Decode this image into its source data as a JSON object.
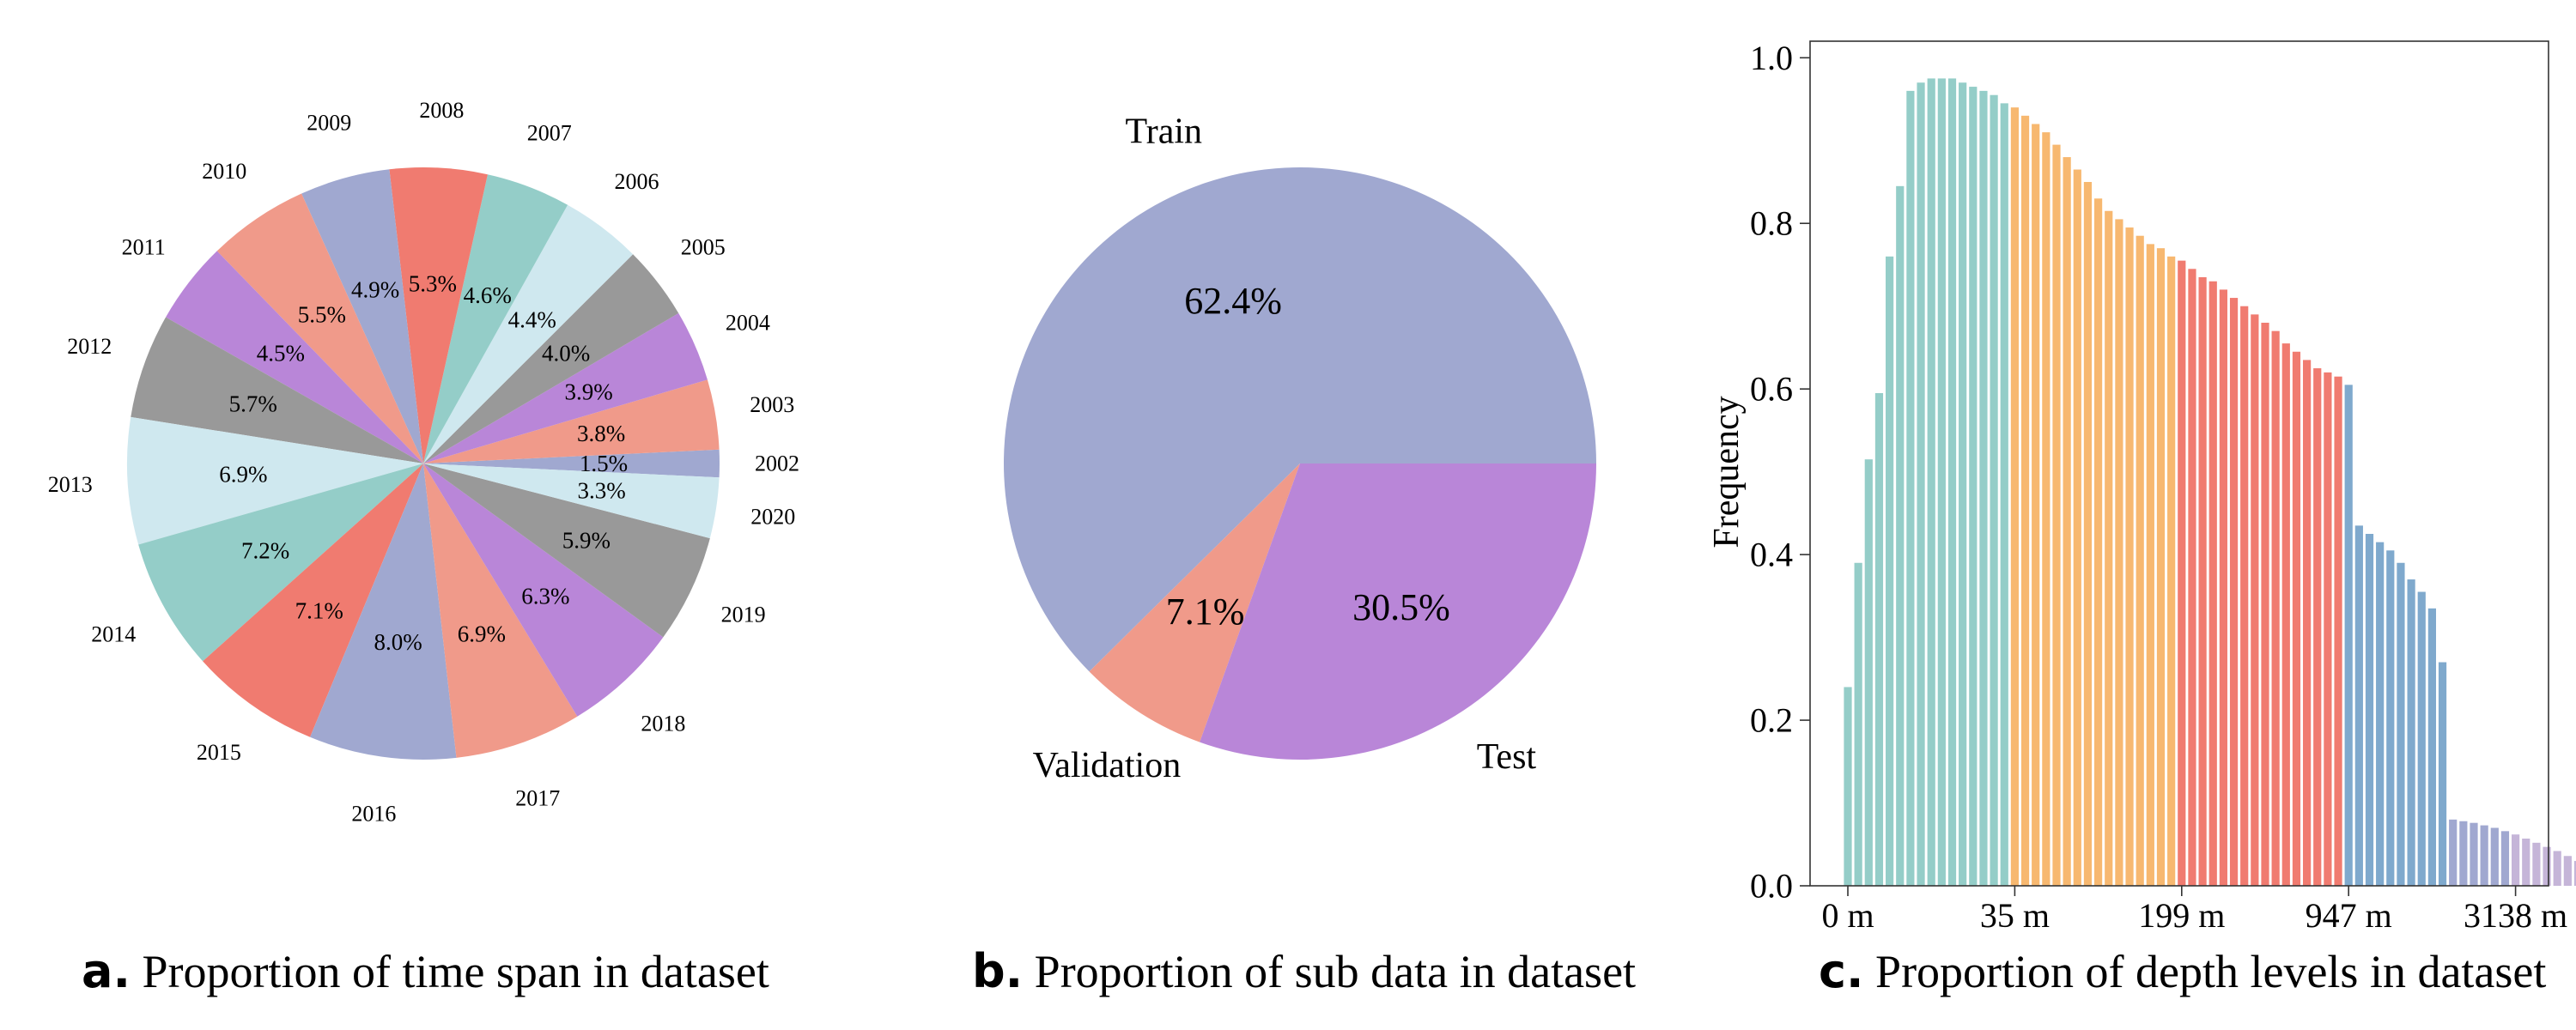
{
  "chart_data": [
    {
      "type": "pie",
      "letter": "a.",
      "caption": "Proportion of time span in dataset",
      "start_category": "2002",
      "labels": [
        "2002",
        "2003",
        "2004",
        "2005",
        "2006",
        "2007",
        "2008",
        "2009",
        "2010",
        "2011",
        "2012",
        "2013",
        "2014",
        "2015",
        "2016",
        "2017",
        "2018",
        "2019",
        "2020"
      ],
      "values": [
        1.5,
        3.8,
        3.9,
        4.0,
        4.4,
        4.6,
        5.3,
        4.9,
        5.5,
        4.5,
        5.7,
        6.9,
        7.2,
        7.1,
        8.0,
        6.9,
        6.3,
        5.9,
        3.3
      ],
      "value_labels": [
        "1.5%",
        "3.8%",
        "3.9%",
        "4.0%",
        "4.4%",
        "4.6%",
        "5.3%",
        "4.9%",
        "5.5%",
        "4.5%",
        "5.7%",
        "6.9%",
        "7.2%",
        "7.1%",
        "8.0%",
        "6.9%",
        "6.3%",
        "5.9%",
        "3.3%"
      ],
      "colors": [
        "#a0a8d0",
        "#f09a8a",
        "#b986d8",
        "#999999",
        "#cfe8ef",
        "#94cdc8",
        "#f07b70",
        "#a0a8d0",
        "#f09a8a",
        "#b986d8",
        "#999999",
        "#cfe8ef",
        "#94cdc8",
        "#f07b70",
        "#a0a8d0",
        "#f09a8a",
        "#b986d8",
        "#999999",
        "#cfe8ef"
      ],
      "direction": "counterclockwise"
    },
    {
      "type": "pie",
      "letter": "b.",
      "caption": "Proportion of sub data in dataset",
      "labels": [
        "Train",
        "Validation",
        "Test"
      ],
      "values": [
        62.4,
        7.1,
        30.5
      ],
      "value_labels": [
        "62.4%",
        "7.1%",
        "30.5%"
      ],
      "colors": [
        "#a0a8d0",
        "#f09a8a",
        "#b986d8"
      ],
      "direction": "counterclockwise"
    },
    {
      "type": "bar",
      "letter": "c.",
      "caption": "Proportion of depth levels in dataset",
      "ylabel": "Frequency",
      "ylim": [
        0,
        1.02
      ],
      "yticks": [
        "0.0",
        "0.2",
        "0.4",
        "0.6",
        "0.8",
        "1.0"
      ],
      "xtick_labels": [
        "0 m",
        "35 m",
        "199 m",
        "947 m",
        "3138 m"
      ],
      "xtick_positions": [
        0,
        16,
        32,
        48,
        64
      ],
      "groups": [
        {
          "color": "#94cdc8",
          "values": [
            0.24,
            0.39,
            0.515,
            0.595,
            0.76,
            0.845,
            0.96,
            0.97,
            0.975,
            0.975,
            0.975,
            0.97,
            0.965,
            0.96,
            0.955,
            0.945
          ]
        },
        {
          "color": "#f7b870",
          "values": [
            0.94,
            0.93,
            0.92,
            0.91,
            0.895,
            0.88,
            0.865,
            0.85,
            0.83,
            0.815,
            0.805,
            0.795,
            0.785,
            0.775,
            0.77,
            0.76
          ]
        },
        {
          "color": "#f07b70",
          "values": [
            0.755,
            0.745,
            0.735,
            0.73,
            0.72,
            0.71,
            0.7,
            0.69,
            0.68,
            0.67,
            0.655,
            0.645,
            0.635,
            0.625,
            0.62,
            0.615
          ]
        },
        {
          "color": "#7fa9cd",
          "values": [
            0.605,
            0.435,
            0.425,
            0.415,
            0.405,
            0.39,
            0.37,
            0.355,
            0.335,
            0.27
          ]
        },
        {
          "color": "#a0a8d0",
          "values": [
            0.08,
            0.078,
            0.076,
            0.073,
            0.07,
            0.066
          ]
        },
        {
          "color": "#c5b5d8",
          "values": [
            0.062,
            0.057,
            0.052,
            0.047,
            0.042,
            0.036,
            0.03,
            0.024,
            0.018,
            0.012,
            0.007,
            0.004
          ]
        }
      ]
    }
  ]
}
